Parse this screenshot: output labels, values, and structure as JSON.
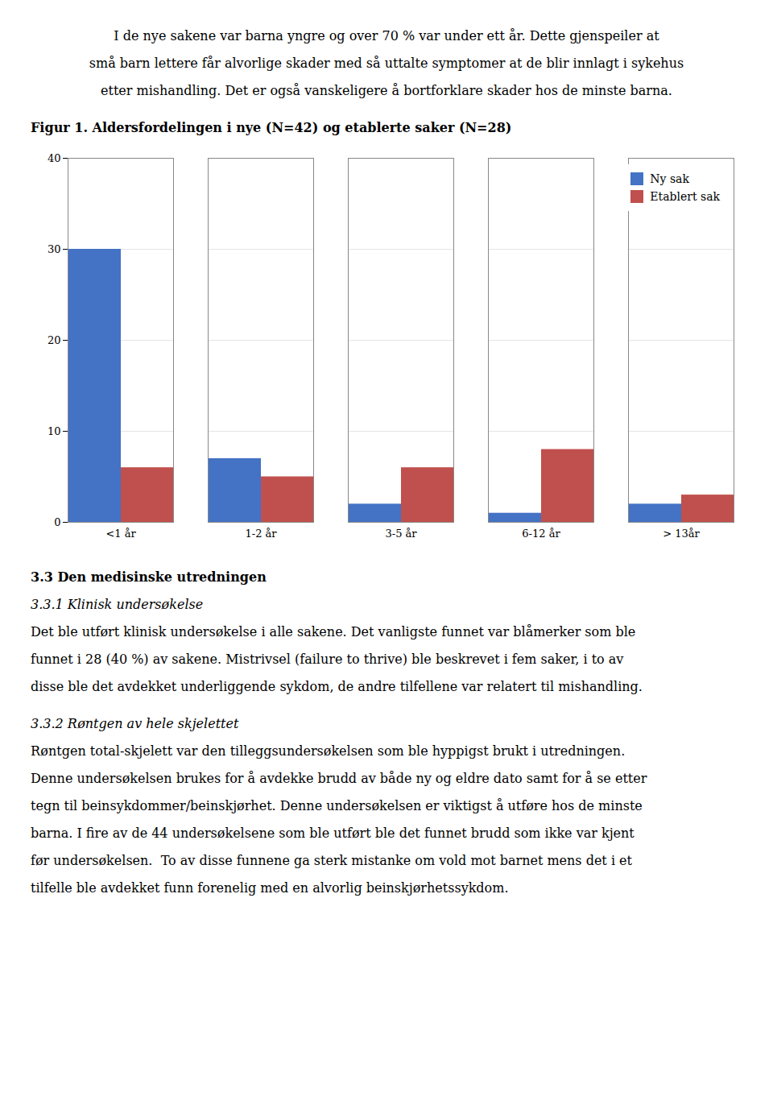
{
  "text_above": [
    "I de nye sakene var barna yngre og over 70 % var under ett år. Dette gjenspeiler at",
    "små barn lettere får alvorlige skader med så uttalte symptomer at de blir innlagt i sykehus",
    "etter mishandling. Det er også vanskeligere å bortforklare skader hos de minste barna."
  ],
  "chart_data": {
    "type": "bar",
    "title": "Figur 1. Aldersfordelingen i nye (N=42) og etablerte saker (N=28)",
    "categories": [
      "<1 år",
      "1-2 år",
      "3-5 år",
      "6-12 år",
      "> 13år"
    ],
    "series": [
      {
        "name": "Ny sak",
        "color": "#4472C4",
        "values": [
          30,
          7,
          2,
          1,
          2
        ]
      },
      {
        "name": "Etablert sak",
        "color": "#C0504D",
        "values": [
          6,
          5,
          6,
          8,
          3
        ]
      }
    ],
    "ylim": [
      0,
      40
    ],
    "yticks": [
      0,
      10,
      20,
      30,
      40
    ],
    "grid": true,
    "legend": "upper right"
  },
  "text_below": [
    {
      "heading": "3.3 Den medisinske utredningen"
    },
    {
      "subheading": "3.3.1 Klinisk undersøkelse"
    },
    {
      "lines": [
        "Det ble utført klinisk undersøkelse i alle sakene. Det vanligste funnet var blåmerker som ble",
        "funnet i 28 (40 %) av sakene. Mistrivsel (failure to thrive) ble beskrevet i fem saker, i to av",
        "disse ble det avdekket underliggende sykdom, de andre tilfellene var relatert til mishandling."
      ]
    },
    {
      "subheading": "3.3.2 Røntgen av hele skjelettet"
    },
    {
      "lines": [
        "Røntgen total-skjelett var den tilleggsundersøkelsen som ble hyppigst brukt i utredningen.",
        "Denne undersøkelsen brukes for å avdekke brudd av både ny og eldre dato samt for å se etter",
        "tegn til beinsykdommer/beinskjørhet. Denne undersøkelsen er viktigst å utføre hos de minste",
        "barna. I fire av de 44 undersøkelsene som ble utført ble det funnet brudd som ikke var kjent",
        "før undersøkelsen.  To av disse funnene ga sterk mistanke om vold mot barnet mens det i et",
        "tilfelle ble avdekket funn forenelig med en alvorlig beinskjørhetssykdom."
      ]
    }
  ]
}
